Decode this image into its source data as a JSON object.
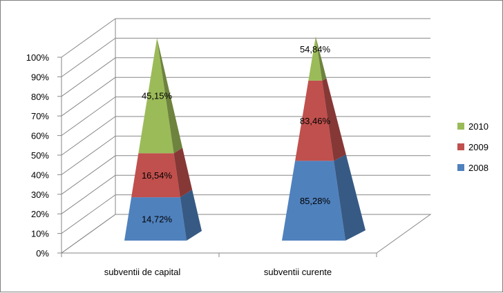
{
  "chart_data": {
    "type": "bar",
    "subtype": "3d-pyramid-100%-stacked",
    "categories": [
      "subventii de capital",
      "subventii curente"
    ],
    "series": [
      {
        "name": "2008",
        "color": "#4F81BD",
        "values": [
          14.72,
          85.28
        ]
      },
      {
        "name": "2009",
        "color": "#C0504D",
        "values": [
          16.54,
          83.46
        ]
      },
      {
        "name": "2010",
        "color": "#9BBB59",
        "values": [
          45.15,
          54.84
        ]
      }
    ],
    "data_labels": [
      [
        "14,72%",
        "85,28%"
      ],
      [
        "16,54%",
        "83,46%"
      ],
      [
        "45,15%",
        "54,84%"
      ]
    ],
    "displayed_stack_fractions": [
      {
        "2008": 0.214,
        "2009": 0.431,
        "2010": 1.0
      },
      {
        "2008": 0.391,
        "2009": 0.784,
        "2010": 1.0
      }
    ],
    "ylim": [
      0,
      100
    ],
    "yticks": [
      "0%",
      "10%",
      "20%",
      "30%",
      "40%",
      "50%",
      "60%",
      "70%",
      "80%",
      "90%",
      "100%"
    ],
    "grid": true,
    "legend_position": "right",
    "legend": [
      "2010",
      "2009",
      "2008"
    ]
  }
}
